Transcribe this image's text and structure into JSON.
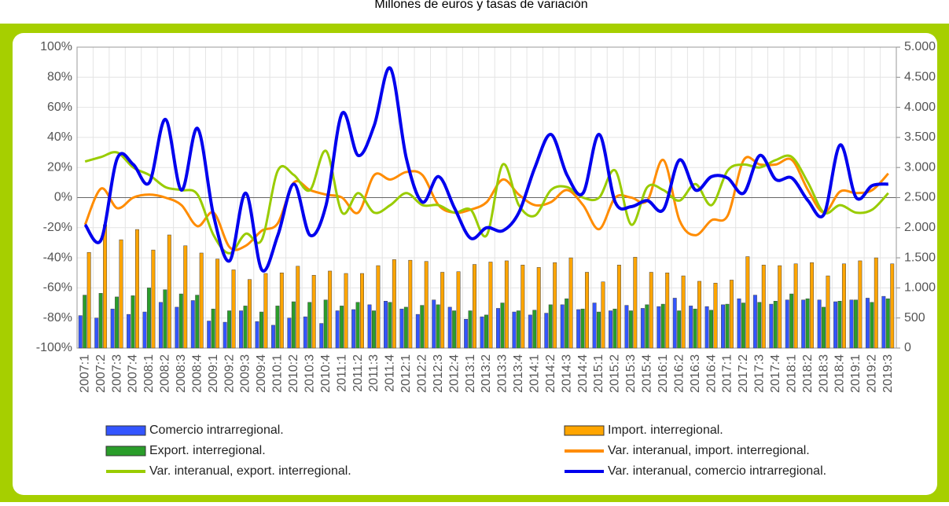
{
  "chart_data": {
    "type": "bar-line",
    "title": "Millones de euros y tasas de variación",
    "categories": [
      "2007:1",
      "2007:2",
      "2007:3",
      "2007:4",
      "2008:1",
      "2008:2",
      "2008:3",
      "2008:4",
      "2009:1",
      "2009:2",
      "2009:3",
      "2009:4",
      "2010:1",
      "2010:2",
      "2010:3",
      "2010:4",
      "2011:1",
      "2011:2",
      "2011:3",
      "2011:4",
      "2012:1",
      "2012:2",
      "2012:3",
      "2012:4",
      "2013:1",
      "2013:2",
      "2013:3",
      "2013:4",
      "2014:1",
      "2014:2",
      "2014:3",
      "2014:4",
      "2015:1",
      "2015:2",
      "2015:3",
      "2015:4",
      "2016:1",
      "2016:2",
      "2016:3",
      "2016:4",
      "2017:1",
      "2017:2",
      "2017:3",
      "2017:4",
      "2018:1",
      "2018:2",
      "2018:3",
      "2018:4",
      "2019:1",
      "2019:2",
      "2019:3"
    ],
    "ylim": [
      -100,
      100
    ],
    "yticks": [
      {
        "value": -100,
        "label": "-100%"
      },
      {
        "value": -80,
        "label": "-80%"
      },
      {
        "value": -60,
        "label": "-60%"
      },
      {
        "value": -40,
        "label": "-40%"
      },
      {
        "value": -20,
        "label": "-20%"
      },
      {
        "value": 0,
        "label": "0%"
      },
      {
        "value": 20,
        "label": "20%"
      },
      {
        "value": 40,
        "label": "40%"
      },
      {
        "value": 60,
        "label": "60%"
      },
      {
        "value": 80,
        "label": "80%"
      },
      {
        "value": 100,
        "label": "100%"
      }
    ],
    "y2lim": [
      0,
      5000
    ],
    "y2ticks": [
      0,
      500,
      {
        "value": 1000,
        "label": "1.000"
      },
      {
        "value": 1500,
        "label": "1.500"
      },
      {
        "value": 2000,
        "label": "2.000"
      },
      {
        "value": 2500,
        "label": "2.500"
      },
      {
        "value": 3000,
        "label": "3.000"
      },
      {
        "value": 3500,
        "label": "3.500"
      },
      {
        "value": 4000,
        "label": "4.000"
      },
      {
        "value": 4500,
        "label": "4.500"
      },
      {
        "value": 5000,
        "label": "5.000"
      }
    ],
    "grid": true,
    "series": [
      {
        "name": "Comercio intrarregional.",
        "type": "bar",
        "axis": "y2",
        "color": "#3355ff",
        "values": [
          540,
          500,
          650,
          560,
          600,
          760,
          680,
          790,
          450,
          430,
          620,
          440,
          380,
          500,
          520,
          410,
          620,
          640,
          720,
          780,
          650,
          560,
          800,
          680,
          480,
          520,
          660,
          600,
          550,
          580,
          720,
          640,
          750,
          620,
          710,
          660,
          690,
          830,
          700,
          690,
          720,
          820,
          880,
          730,
          800,
          800,
          800,
          770,
          800,
          830,
          860
        ]
      },
      {
        "name": "Import. interregional.",
        "type": "bar",
        "axis": "y2",
        "color": "#ffa500",
        "values": [
          1590,
          2050,
          1800,
          1970,
          1630,
          1880,
          1700,
          1580,
          1480,
          1300,
          1140,
          1240,
          1250,
          1360,
          1210,
          1280,
          1240,
          1240,
          1370,
          1470,
          1460,
          1440,
          1260,
          1270,
          1390,
          1430,
          1450,
          1380,
          1340,
          1420,
          1500,
          1260,
          1100,
          1380,
          1510,
          1260,
          1250,
          1200,
          1110,
          1080,
          1130,
          1520,
          1380,
          1370,
          1400,
          1420,
          1200,
          1400,
          1450,
          1500,
          1400
        ]
      },
      {
        "name": "Export. interregional.",
        "type": "bar",
        "axis": "y2",
        "color": "#2a9d2a",
        "values": [
          880,
          910,
          850,
          870,
          1000,
          970,
          900,
          880,
          650,
          620,
          700,
          600,
          700,
          770,
          760,
          800,
          700,
          760,
          620,
          760,
          680,
          710,
          720,
          620,
          620,
          550,
          750,
          620,
          630,
          720,
          820,
          650,
          600,
          650,
          620,
          720,
          730,
          620,
          650,
          630,
          730,
          750,
          760,
          780,
          900,
          820,
          680,
          780,
          800,
          760,
          820
        ]
      },
      {
        "name": "Var. interanual, import. interregional.",
        "type": "line",
        "color": "#ff8c00",
        "values": [
          -18,
          6,
          -7,
          0,
          2,
          0,
          -5,
          -19,
          -10,
          -33,
          -32,
          -22,
          -17,
          10,
          5,
          2,
          0,
          -10,
          15,
          12,
          17,
          15,
          -5,
          -10,
          -8,
          -3,
          12,
          2,
          -5,
          -3,
          5,
          -5,
          -21,
          0,
          0,
          -2,
          25,
          -15,
          -25,
          -15,
          -12,
          25,
          22,
          22,
          25,
          5,
          -10,
          4,
          3,
          5,
          16
        ]
      },
      {
        "name": "Var. interanual, export. interregional.",
        "type": "line",
        "color": "#99cc00",
        "values": [
          24,
          27,
          30,
          20,
          15,
          7,
          5,
          2,
          -25,
          -37,
          -24,
          -28,
          18,
          15,
          5,
          31,
          -10,
          3,
          -10,
          -5,
          3,
          -5,
          -5,
          -10,
          -8,
          -25,
          22,
          -5,
          -12,
          5,
          7,
          0,
          0,
          18,
          -18,
          7,
          5,
          -2,
          9,
          -5,
          18,
          22,
          20,
          25,
          27,
          10,
          -10,
          -5,
          -10,
          -8,
          3
        ]
      },
      {
        "name": "Var. interanual, comercio intrarregional.",
        "type": "line",
        "color": "#0000ee",
        "values": [
          -18,
          -28,
          26,
          22,
          10,
          52,
          5,
          46,
          -12,
          -42,
          3,
          -48,
          -25,
          9,
          -25,
          -5,
          56,
          28,
          48,
          86,
          26,
          -3,
          14,
          -7,
          -27,
          -20,
          -22,
          -10,
          20,
          42,
          15,
          3,
          42,
          -3,
          -6,
          -2,
          -8,
          25,
          5,
          14,
          13,
          3,
          28,
          12,
          13,
          -2,
          -11,
          35,
          0,
          8,
          9
        ]
      }
    ]
  }
}
